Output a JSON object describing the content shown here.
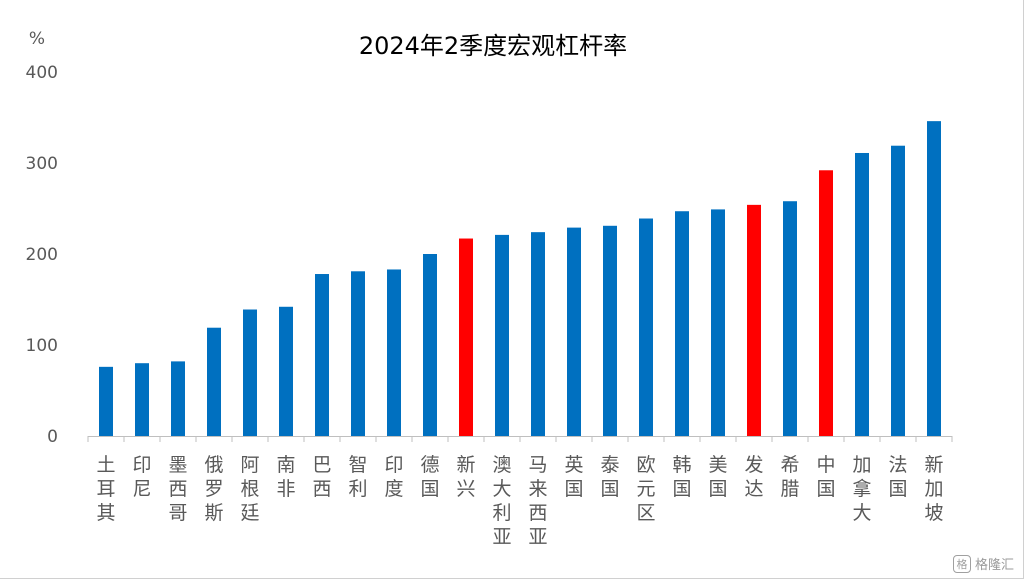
{
  "chart_data": {
    "type": "bar",
    "title": "2024年2季度宏观杠杆率",
    "ylabel": "%",
    "xlabel": "",
    "ylim": [
      0,
      400
    ],
    "yticks": [
      0,
      100,
      200,
      300,
      400
    ],
    "grid": false,
    "legend": "none",
    "categories": [
      "土耳其",
      "印尼",
      "墨西哥",
      "俄罗斯",
      "阿根廷",
      "南非",
      "巴西",
      "智利",
      "印度",
      "德国",
      "新兴",
      "澳大利亚",
      "马来西亚",
      "英国",
      "泰国",
      "欧元区",
      "韩国",
      "美国",
      "发达",
      "希腊",
      "中国",
      "加拿大",
      "法国",
      "新加坡"
    ],
    "values": [
      76,
      80,
      82,
      119,
      139,
      142,
      178,
      181,
      183,
      200,
      217,
      221,
      224,
      229,
      231,
      239,
      247,
      249,
      254,
      258,
      292,
      311,
      319,
      346
    ],
    "highlight": [
      "新兴",
      "发达",
      "中国"
    ],
    "colors": {
      "bar": "#0070C0",
      "highlight": "#FF0000",
      "axis": "#BFBFBF",
      "text": "#595959",
      "title": "#000000"
    }
  },
  "watermark": {
    "icon": "格",
    "text": "格隆汇"
  }
}
